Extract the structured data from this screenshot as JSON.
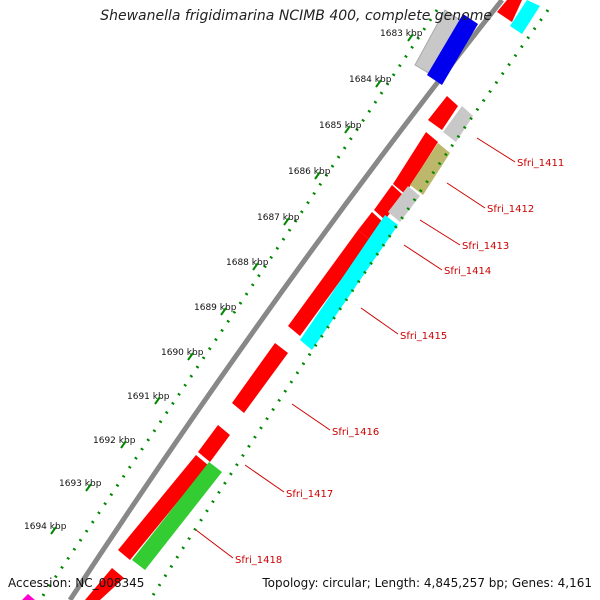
{
  "title": "Shewanella frigidimarina NCIMB 400, complete genome",
  "accession": "Accession: NC_008345",
  "summary": "Topology: circular; Length: 4,845,257 bp; Genes: 4,161",
  "kbp_ticks": [
    "1683 kbp",
    "1684 kbp",
    "1685 kbp",
    "1686 kbp",
    "1687 kbp",
    "1688 kbp",
    "1689 kbp",
    "1690 kbp",
    "1691 kbp",
    "1692 kbp",
    "1693 kbp",
    "1694 kbp"
  ],
  "gene_labels": [
    "Sfri_1411",
    "Sfri_1412",
    "Sfri_1413",
    "Sfri_1414",
    "Sfri_1415",
    "Sfri_1416",
    "Sfri_1417",
    "Sfri_1418"
  ],
  "colors": {
    "red": "#ff0000",
    "blue": "#0000ee",
    "gray": "#c8c8c8",
    "cyan": "#00ffff",
    "olive": "#bdb76b",
    "green": "#33cc33",
    "magenta": "#ff00cc",
    "dots_green": "#008800",
    "backbone": "#888888"
  }
}
